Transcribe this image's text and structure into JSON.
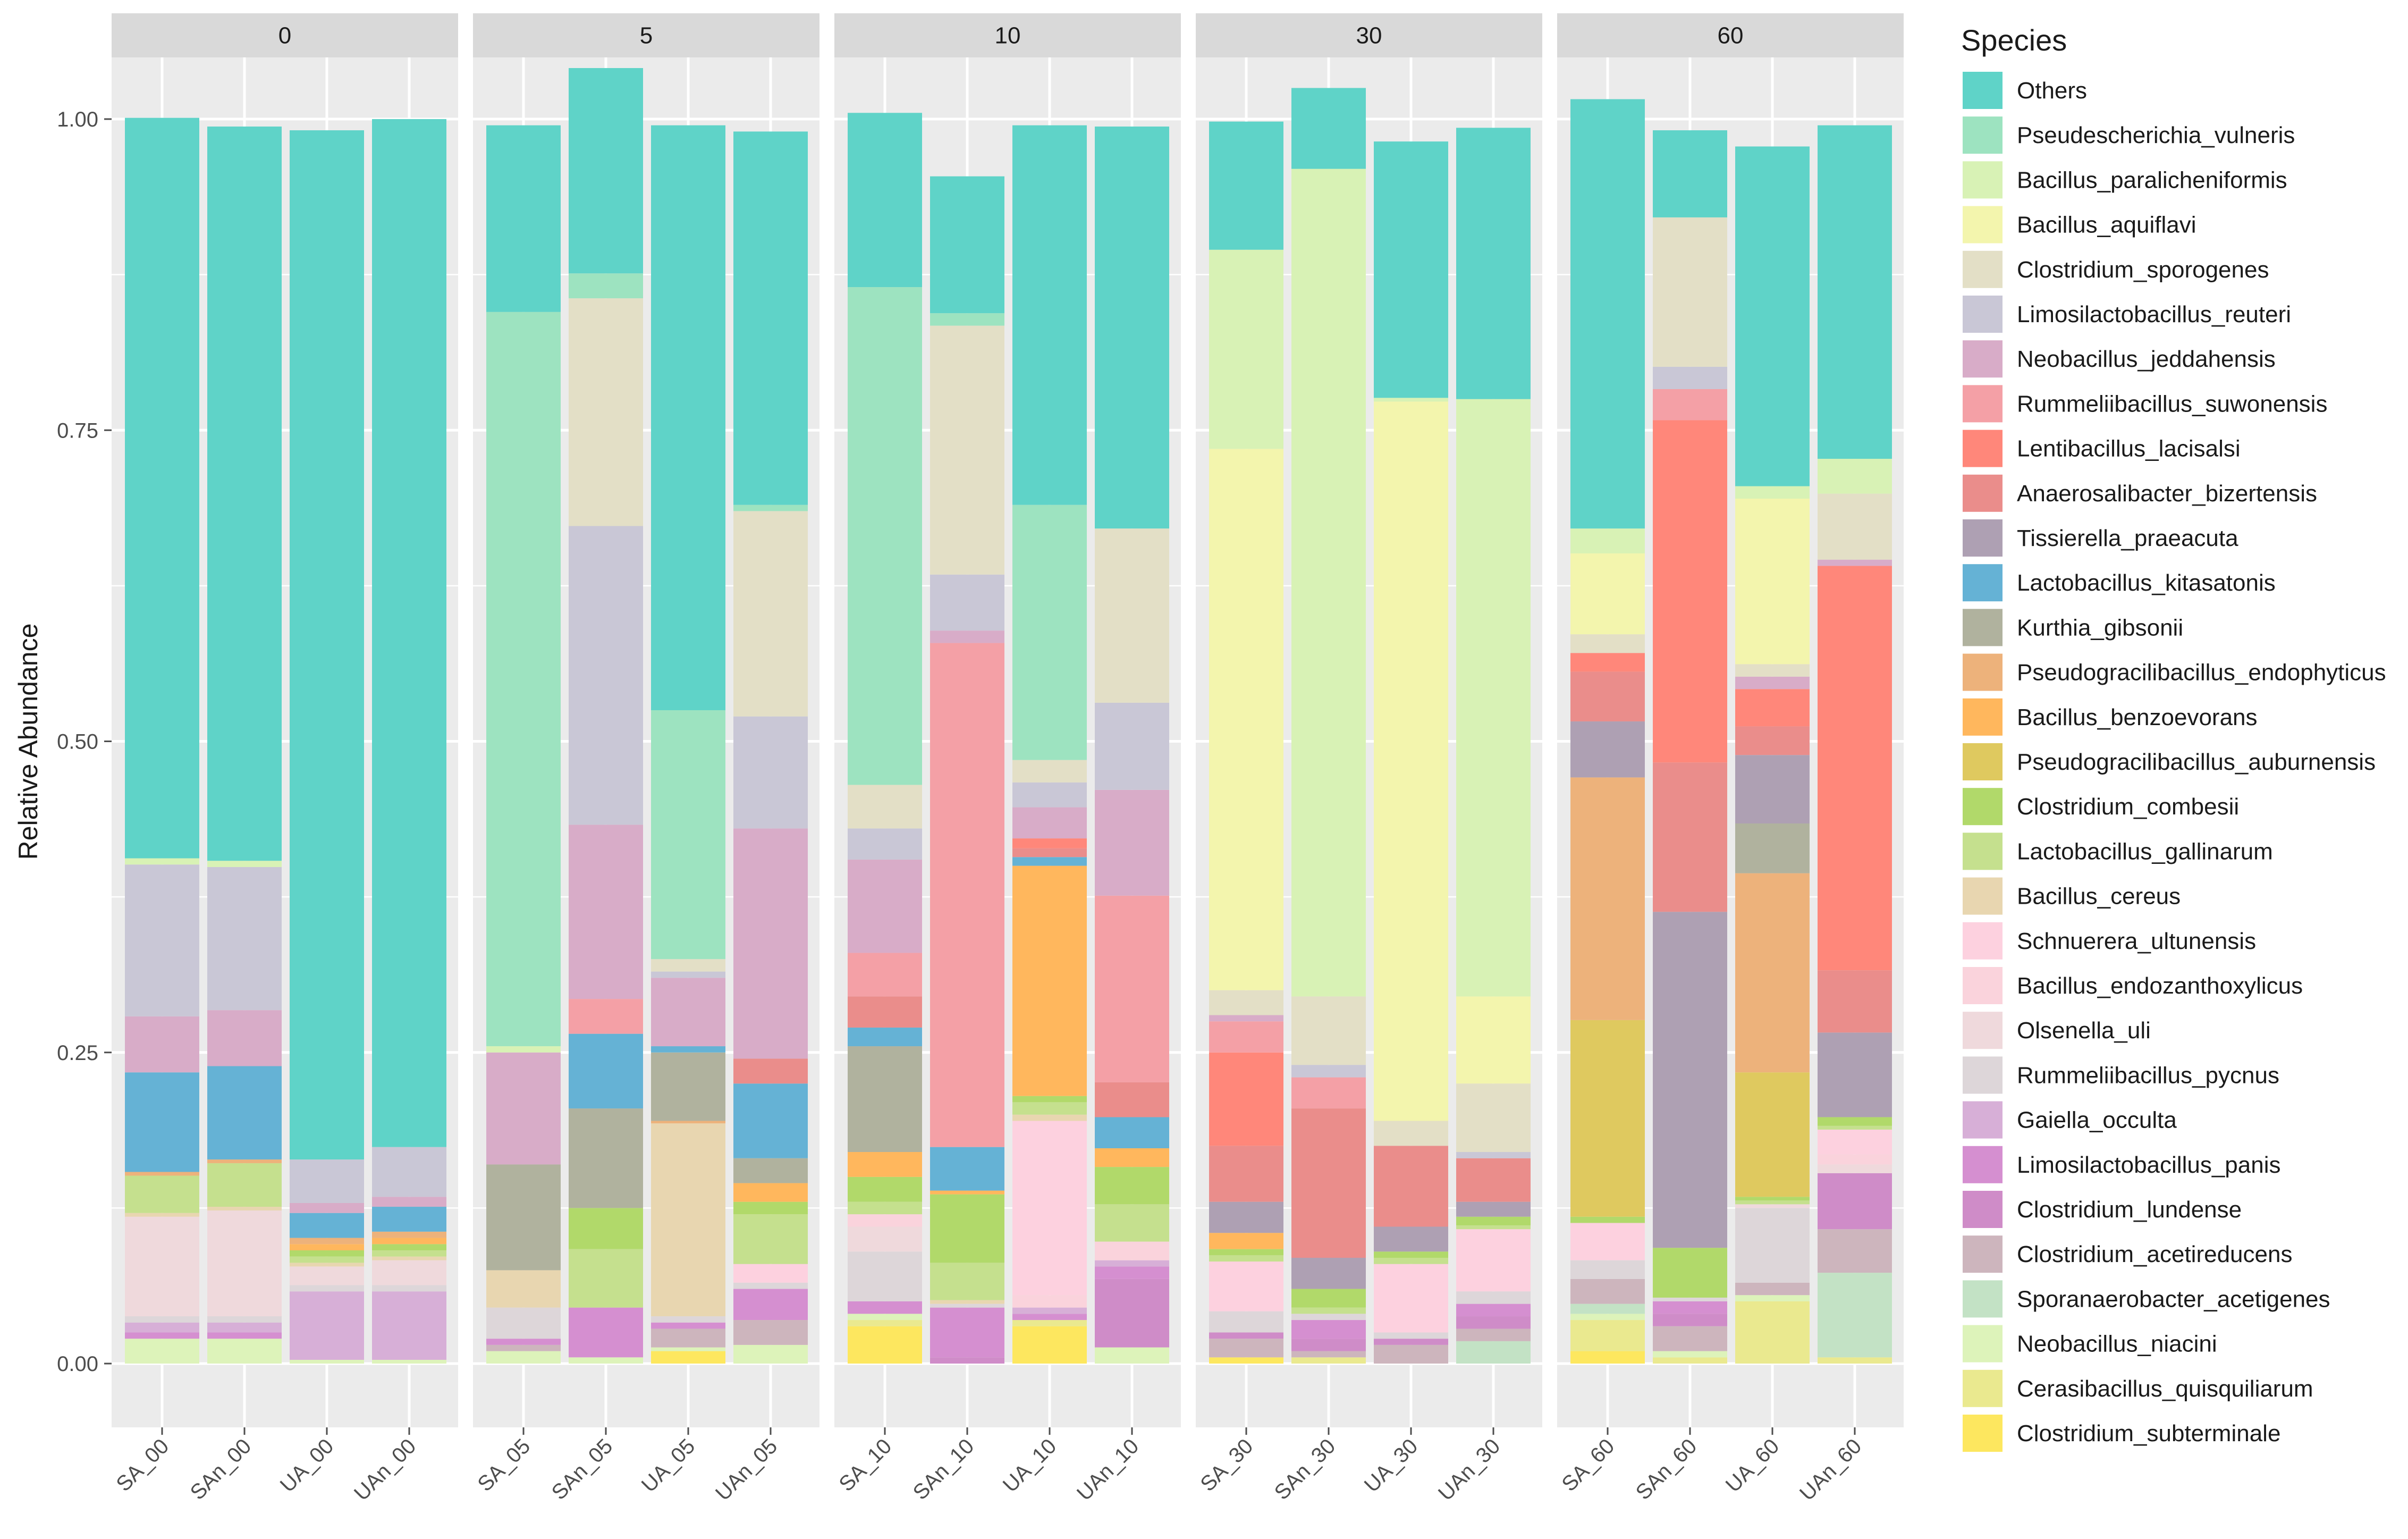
{
  "chart_data": {
    "type": "bar",
    "stacked": true,
    "ylabel": "Relative Abundance",
    "ylim": [
      0,
      1
    ],
    "yticks": [
      "0.00",
      "0.25",
      "0.50",
      "0.75",
      "1.00"
    ],
    "grid": true,
    "legend_title": "Species",
    "legend_position": "right",
    "panels": [
      "0",
      "5",
      "10",
      "30",
      "60"
    ],
    "categories": [
      [
        "SA_00",
        "SAn_00",
        "UA_00",
        "UAn_00"
      ],
      [
        "SA_05",
        "SAn_05",
        "UA_05",
        "UAn_05"
      ],
      [
        "SA_10",
        "SAn_10",
        "UA_10",
        "UAn_10"
      ],
      [
        "SA_30",
        "SAn_30",
        "UA_30",
        "UAn_30"
      ],
      [
        "SA_60",
        "SAn_60",
        "UA_60",
        "UAn_60"
      ]
    ],
    "series": [
      {
        "name": "Others",
        "color": "#5FD3C8",
        "values": [
          [
            0.595,
            0.59,
            0.827,
            0.826
          ],
          [
            0.15,
            0.165,
            0.47,
            0.3
          ],
          [
            0.14,
            0.11,
            0.305,
            0.323
          ],
          [
            0.103,
            0.065,
            0.206,
            0.218
          ],
          [
            0.345,
            0.07,
            0.273,
            0.268
          ]
        ]
      },
      {
        "name": "Pseudescherichia_vulneris",
        "color": "#9DE3C0",
        "values": [
          [
            0,
            0,
            0,
            0
          ],
          [
            0.59,
            0.02,
            0.2,
            0.005
          ],
          [
            0.4,
            0.01,
            0.205,
            0
          ],
          [
            0,
            0,
            0,
            0
          ],
          [
            0,
            0,
            0,
            0
          ]
        ]
      },
      {
        "name": "Bacillus_paralicheniformis",
        "color": "#D8F2B5",
        "values": [
          [
            0.005,
            0.005,
            0,
            0
          ],
          [
            0.005,
            0,
            0,
            0
          ],
          [
            0,
            0,
            0,
            0
          ],
          [
            0.16,
            0.665,
            0.003,
            0.48
          ],
          [
            0.02,
            0,
            0.01,
            0.028
          ]
        ]
      },
      {
        "name": "Bacillus_aquiflavi",
        "color": "#F3F5AD",
        "values": [
          [
            0,
            0,
            0,
            0
          ],
          [
            0,
            0,
            0,
            0
          ],
          [
            0,
            0,
            0,
            0
          ],
          [
            0.435,
            0,
            0.578,
            0.07
          ],
          [
            0.065,
            0,
            0.133,
            0
          ]
        ]
      },
      {
        "name": "Clostridium_sporogenes",
        "color": "#E3DFC6",
        "values": [
          [
            0,
            0,
            0,
            0
          ],
          [
            0,
            0.183,
            0.01,
            0.165
          ],
          [
            0.035,
            0.2,
            0.018,
            0.14
          ],
          [
            0.02,
            0.055,
            0.02,
            0.055
          ],
          [
            0.015,
            0.12,
            0.01,
            0.053
          ]
        ]
      },
      {
        "name": "Limosilactobacillus_reuteri",
        "color": "#C9C7D6",
        "values": [
          [
            0.122,
            0.115,
            0.035,
            0.04
          ],
          [
            0,
            0.24,
            0.005,
            0.09
          ],
          [
            0.025,
            0.045,
            0.02,
            0.07
          ],
          [
            0,
            0.01,
            0,
            0.005
          ],
          [
            0,
            0.018,
            0,
            0
          ]
        ]
      },
      {
        "name": "Neobacillus_jeddahensis",
        "color": "#D8ACC8",
        "values": [
          [
            0.045,
            0.045,
            0.008,
            0.008
          ],
          [
            0.09,
            0.14,
            0.055,
            0.185
          ],
          [
            0.075,
            0.01,
            0.025,
            0.085
          ],
          [
            0.005,
            0,
            0,
            0
          ],
          [
            0,
            0,
            0.01,
            0.005
          ]
        ]
      },
      {
        "name": "Rummeliibacillus_suwonensis",
        "color": "#F4A0A6",
        "values": [
          [
            0,
            0,
            0,
            0
          ],
          [
            0,
            0.028,
            0,
            0
          ],
          [
            0.035,
            0.405,
            0,
            0.15
          ],
          [
            0.025,
            0.025,
            0,
            0
          ],
          [
            0,
            0.025,
            0,
            0
          ]
        ]
      },
      {
        "name": "Lentibacillus_lacisalsi",
        "color": "#FF877A",
        "values": [
          [
            0,
            0,
            0,
            0
          ],
          [
            0,
            0,
            0,
            0
          ],
          [
            0,
            0,
            0.008,
            0
          ],
          [
            0.075,
            0,
            0,
            0
          ],
          [
            0.015,
            0.275,
            0.03,
            0.325
          ]
        ]
      },
      {
        "name": "Anaerosalibacter_bizertensis",
        "color": "#EA8D8B",
        "values": [
          [
            0,
            0,
            0,
            0
          ],
          [
            0,
            0,
            0,
            0.02
          ],
          [
            0.025,
            0,
            0.007,
            0.028
          ],
          [
            0.045,
            0.12,
            0.065,
            0.035
          ],
          [
            0.04,
            0.12,
            0.023,
            0.05
          ]
        ]
      },
      {
        "name": "Tissierella_praeacuta",
        "color": "#AEA0B3",
        "values": [
          [
            0,
            0,
            0,
            0
          ],
          [
            0,
            0,
            0,
            0
          ],
          [
            0,
            0,
            0,
            0
          ],
          [
            0.025,
            0.025,
            0.02,
            0.012
          ],
          [
            0.045,
            0.27,
            0.055,
            0.068
          ]
        ]
      },
      {
        "name": "Lactobacillus_kitasatonis",
        "color": "#65B2D5",
        "values": [
          [
            0.08,
            0.075,
            0.02,
            0.02
          ],
          [
            0,
            0.06,
            0.005,
            0.06
          ],
          [
            0.015,
            0.035,
            0.007,
            0.025
          ],
          [
            0,
            0,
            0,
            0
          ],
          [
            0,
            0,
            0,
            0
          ]
        ]
      },
      {
        "name": "Kurthia_gibsonii",
        "color": "#B0B29E",
        "values": [
          [
            0,
            0,
            0,
            0
          ],
          [
            0.085,
            0.08,
            0.055,
            0.02
          ],
          [
            0.085,
            0,
            0,
            0
          ],
          [
            0,
            0,
            0,
            0
          ],
          [
            0,
            0,
            0.04,
            0
          ]
        ]
      },
      {
        "name": "Pseudogracilibacillus_endophyticus",
        "color": "#EDB27B",
        "values": [
          [
            0.003,
            0.003,
            0.005,
            0.005
          ],
          [
            0,
            0,
            0.002,
            0
          ],
          [
            0,
            0,
            0,
            0
          ],
          [
            0,
            0,
            0,
            0
          ],
          [
            0.195,
            0,
            0.16,
            0
          ]
        ]
      },
      {
        "name": "Bacillus_benzoevorans",
        "color": "#FFB75D",
        "values": [
          [
            0,
            0,
            0.005,
            0.005
          ],
          [
            0,
            0,
            0,
            0.015
          ],
          [
            0.02,
            0.003,
            0.185,
            0.015
          ],
          [
            0.013,
            0,
            0,
            0
          ],
          [
            0,
            0,
            0,
            0
          ]
        ]
      },
      {
        "name": "Pseudogracilibacillus_auburnensis",
        "color": "#DFC95F",
        "values": [
          [
            0,
            0,
            0,
            0
          ],
          [
            0,
            0,
            0,
            0
          ],
          [
            0,
            0,
            0,
            0
          ],
          [
            0,
            0,
            0,
            0
          ],
          [
            0.158,
            0,
            0.1,
            0
          ]
        ]
      },
      {
        "name": "Clostridium_combesii",
        "color": "#B1D96A",
        "values": [
          [
            0,
            0,
            0.005,
            0.005
          ],
          [
            0,
            0.033,
            0,
            0.01
          ],
          [
            0.02,
            0.055,
            0.005,
            0.03
          ],
          [
            0.005,
            0.015,
            0.005,
            0.007
          ],
          [
            0.005,
            0.04,
            0.003,
            0.007
          ]
        ]
      },
      {
        "name": "Lactobacillus_gallinarum",
        "color": "#C5E08E",
        "values": [
          [
            0.03,
            0.035,
            0.005,
            0.005
          ],
          [
            0,
            0.047,
            0,
            0.04
          ],
          [
            0.01,
            0.03,
            0.01,
            0.03
          ],
          [
            0.005,
            0.005,
            0.005,
            0.003
          ],
          [
            0,
            0,
            0.003,
            0.003
          ]
        ]
      },
      {
        "name": "Bacillus_cereus",
        "color": "#E8D6B0",
        "values": [
          [
            0.003,
            0.003,
            0.003,
            0.003
          ],
          [
            0.03,
            0,
            0.155,
            0
          ],
          [
            0,
            0.003,
            0.005,
            0
          ],
          [
            0,
            0,
            0,
            0
          ],
          [
            0,
            0,
            0,
            0
          ]
        ]
      },
      {
        "name": "Schnuerera_ultunensis",
        "color": "#FDD1DF",
        "values": [
          [
            0,
            0,
            0,
            0
          ],
          [
            0,
            0,
            0,
            0.015
          ],
          [
            0,
            0,
            0.14,
            0
          ],
          [
            0.04,
            0,
            0.055,
            0.05
          ],
          [
            0.03,
            0,
            0,
            0.02
          ]
        ]
      },
      {
        "name": "Bacillus_endozanthoxylicus",
        "color": "#FAD3DC",
        "values": [
          [
            0,
            0,
            0,
            0
          ],
          [
            0,
            0,
            0,
            0
          ],
          [
            0.01,
            0,
            0.01,
            0.015
          ],
          [
            0,
            0,
            0,
            0
          ],
          [
            0,
            0,
            0,
            0.008
          ]
        ]
      },
      {
        "name": "Olsenella_uli",
        "color": "#EFD9DC",
        "values": [
          [
            0.08,
            0.085,
            0.015,
            0.02
          ],
          [
            0,
            0,
            0,
            0
          ],
          [
            0.02,
            0,
            0,
            0
          ],
          [
            0,
            0,
            0,
            0
          ],
          [
            0,
            0,
            0.003,
            0.007
          ]
        ]
      },
      {
        "name": "Rummeliibacillus_pycnus",
        "color": "#DDD6D9",
        "values": [
          [
            0.005,
            0.005,
            0.005,
            0.005
          ],
          [
            0.025,
            0,
            0.005,
            0.005
          ],
          [
            0.04,
            0.003,
            0,
            0
          ],
          [
            0.017,
            0.005,
            0.005,
            0.01
          ],
          [
            0.015,
            0.003,
            0.06,
            0
          ]
        ]
      },
      {
        "name": "Gaiella_occulta",
        "color": "#D7AFD7",
        "values": [
          [
            0.008,
            0.008,
            0.055,
            0.055
          ],
          [
            0,
            0,
            0,
            0
          ],
          [
            0,
            0,
            0.005,
            0.005
          ],
          [
            0,
            0,
            0,
            0
          ],
          [
            0,
            0,
            0,
            0
          ]
        ]
      },
      {
        "name": "Limosilactobacillus_panis",
        "color": "#D58FD0",
        "values": [
          [
            0.005,
            0.005,
            0,
            0
          ],
          [
            0.005,
            0.04,
            0.005,
            0.025
          ],
          [
            0.01,
            0.04,
            0.005,
            0.01
          ],
          [
            0,
            0.015,
            0,
            0.01
          ],
          [
            0,
            0.01,
            0,
            0
          ]
        ]
      },
      {
        "name": "Clostridium_lundense",
        "color": "#CF8CC8",
        "values": [
          [
            0,
            0,
            0,
            0
          ],
          [
            0,
            0,
            0,
            0
          ],
          [
            0,
            0.005,
            0,
            0.055
          ],
          [
            0.005,
            0.01,
            0.005,
            0.01
          ],
          [
            0,
            0.01,
            0,
            0.045
          ]
        ]
      },
      {
        "name": "Clostridium_acetireducens",
        "color": "#CDB5BD",
        "values": [
          [
            0,
            0,
            0,
            0
          ],
          [
            0.005,
            0,
            0.015,
            0.02
          ],
          [
            0,
            0,
            0,
            0
          ],
          [
            0.015,
            0.005,
            0.015,
            0.01
          ],
          [
            0.02,
            0.02,
            0.01,
            0.035
          ]
        ]
      },
      {
        "name": "Sporanaerobacter_acetigenes",
        "color": "#C3E2C5",
        "values": [
          [
            0,
            0,
            0,
            0
          ],
          [
            0,
            0,
            0,
            0
          ],
          [
            0,
            0,
            0,
            0
          ],
          [
            0,
            0,
            0,
            0.018
          ],
          [
            0.008,
            0,
            0,
            0.068
          ]
        ]
      },
      {
        "name": "Neobacillus_niacini",
        "color": "#DDF3BA",
        "values": [
          [
            0.02,
            0.02,
            0.003,
            0.003
          ],
          [
            0.01,
            0.005,
            0.003,
            0.015
          ],
          [
            0.005,
            0,
            0,
            0.013
          ],
          [
            0,
            0,
            0,
            0
          ],
          [
            0.005,
            0.005,
            0.005,
            0
          ]
        ]
      },
      {
        "name": "Cerasibacillus_quisquiliarum",
        "color": "#EAE98F",
        "values": [
          [
            0,
            0,
            0,
            0
          ],
          [
            0,
            0,
            0,
            0
          ],
          [
            0.005,
            0,
            0.005,
            0
          ],
          [
            0,
            0.005,
            0,
            0
          ],
          [
            0.025,
            0.005,
            0.05,
            0.005
          ]
        ]
      },
      {
        "name": "Clostridium_subterminale",
        "color": "#FDE75F",
        "values": [
          [
            0,
            0,
            0,
            0
          ],
          [
            0,
            0,
            0.01,
            0
          ],
          [
            0.03,
            0,
            0.03,
            0
          ],
          [
            0.005,
            0,
            0,
            0
          ],
          [
            0.01,
            0,
            0,
            0
          ]
        ]
      }
    ]
  }
}
